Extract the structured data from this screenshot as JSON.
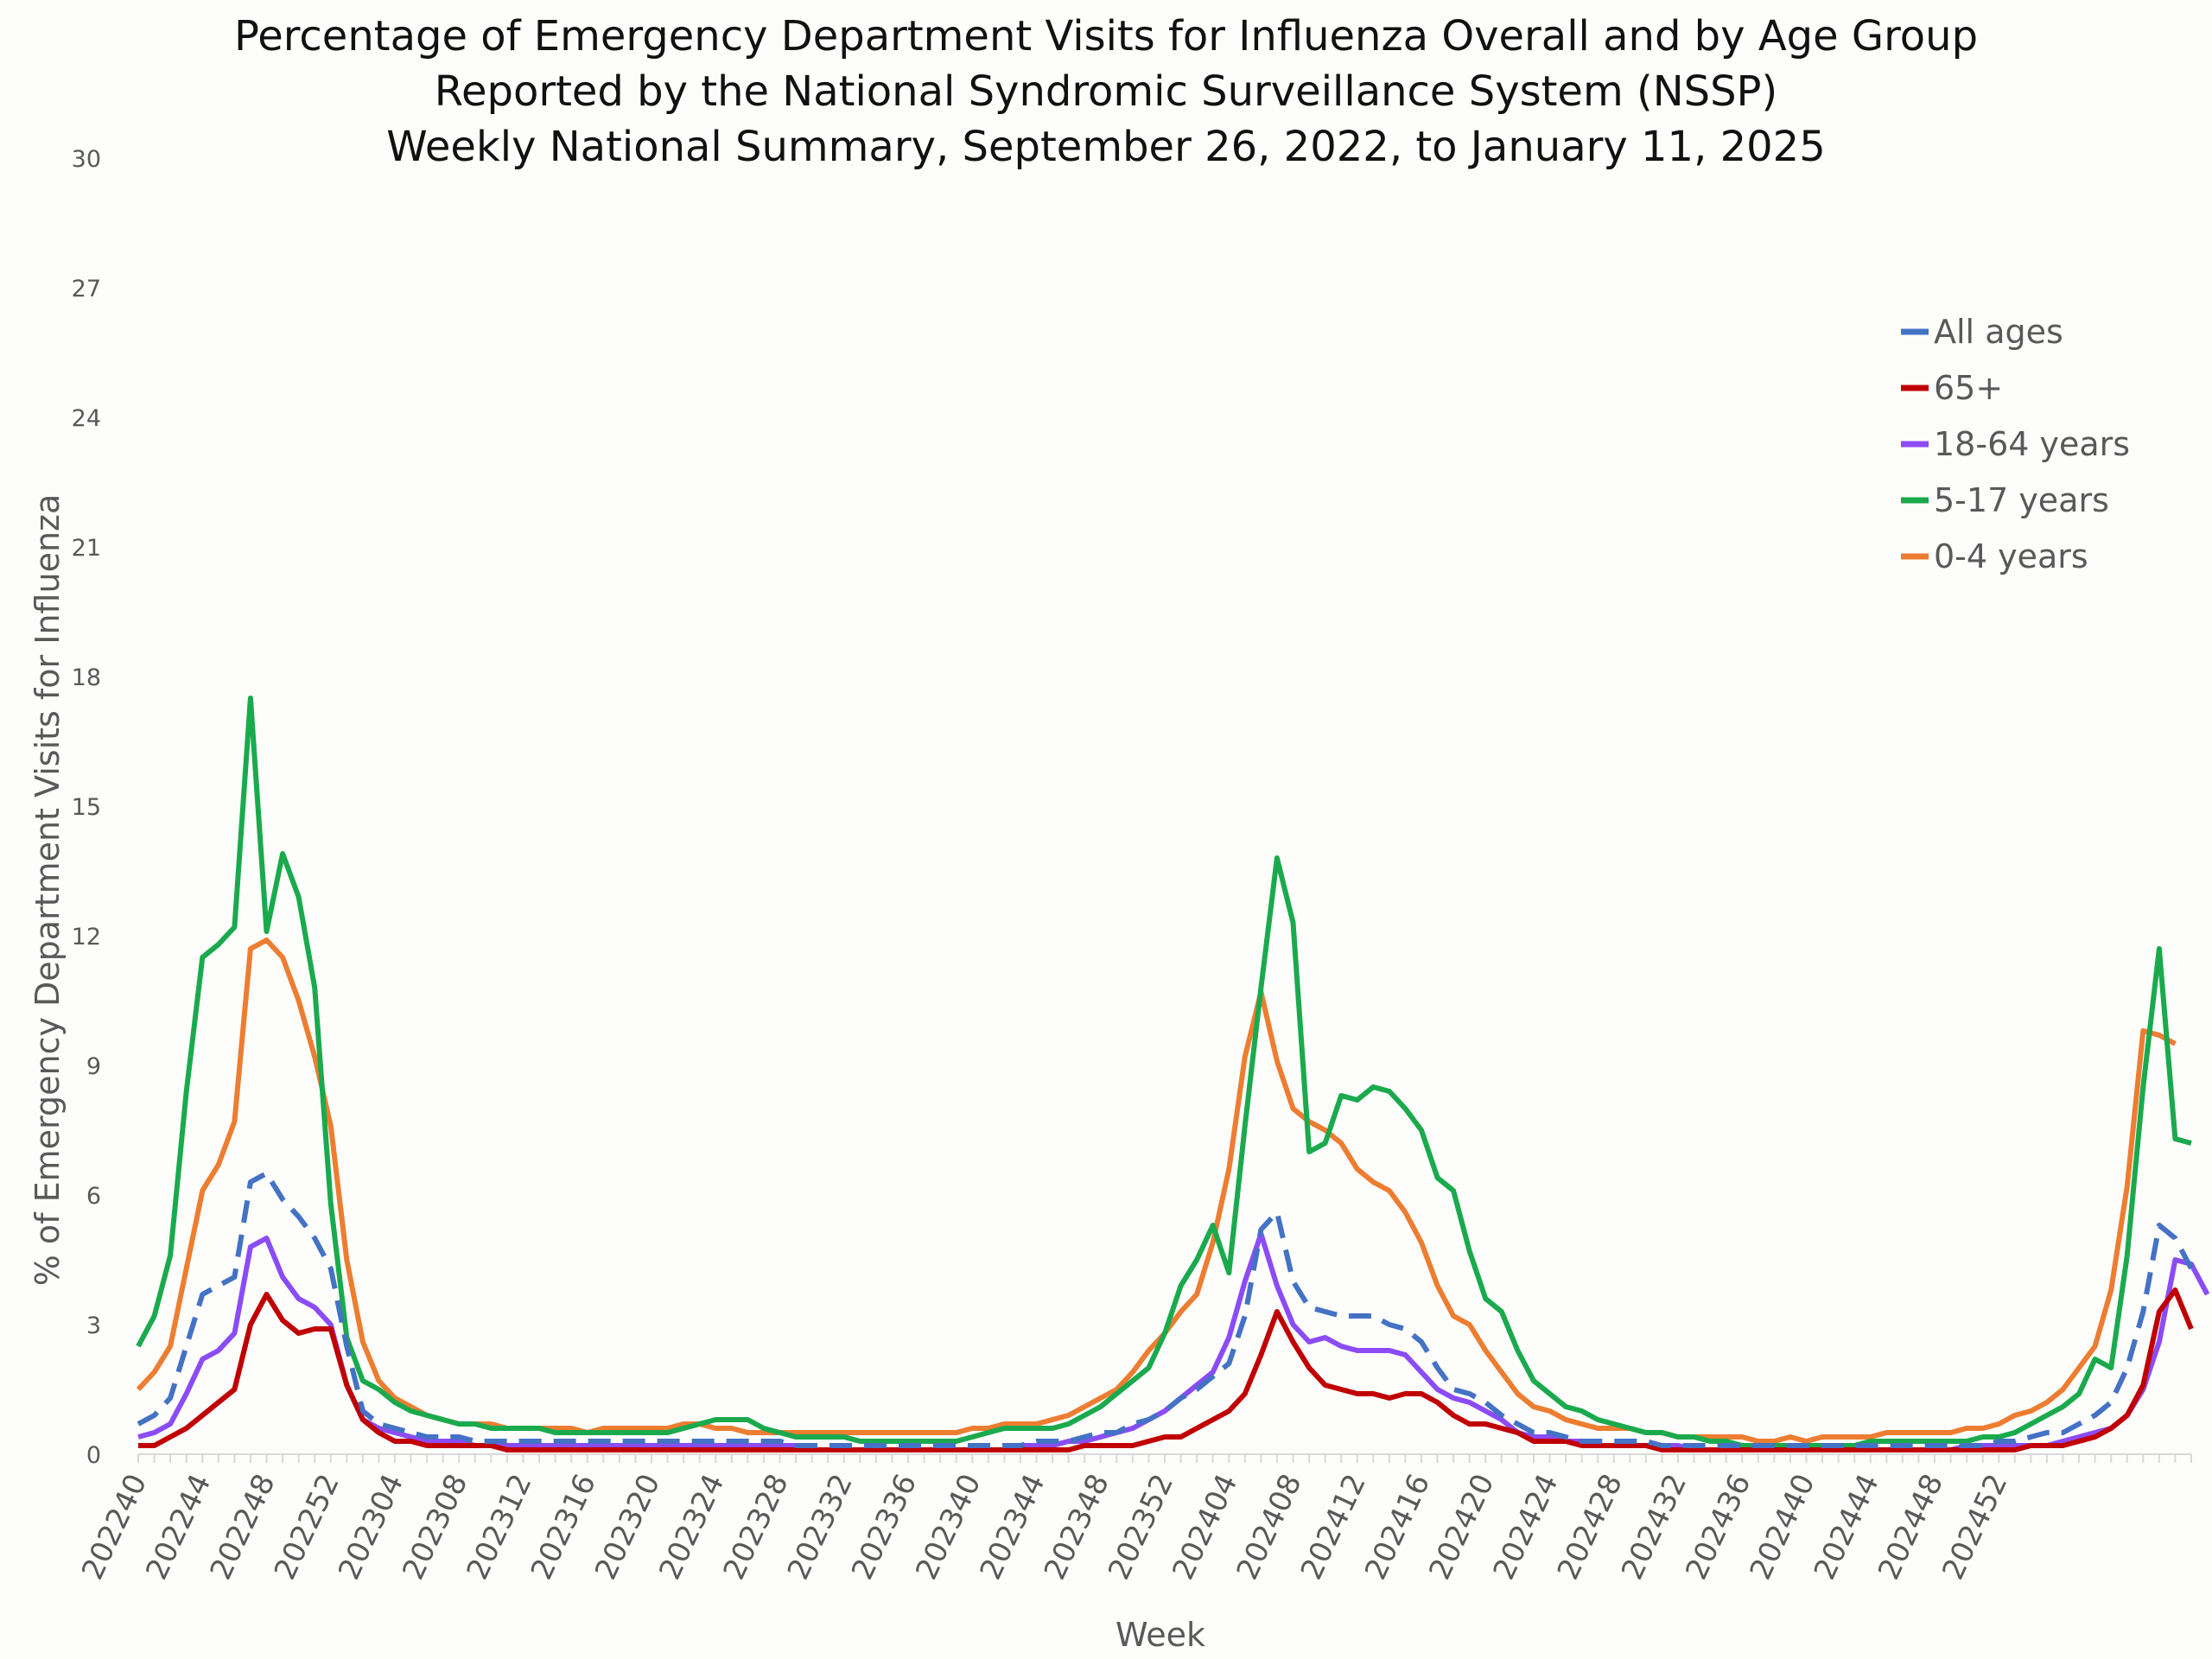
{
  "chart_data": {
    "type": "line",
    "title": [
      "Percentage of Emergency Department Visits for Influenza Overall and by Age Group",
      "Reported by the National Syndromic Surveillance System (NSSP)",
      "Weekly National Summary, September 26, 2022, to January 11, 2025"
    ],
    "xlabel": "Week",
    "ylabel": "% of Emergency Department Visits for Influenza",
    "ylim": [
      0,
      30
    ],
    "yticks": [
      0,
      3,
      6,
      9,
      12,
      15,
      18,
      21,
      24,
      27,
      30
    ],
    "xtick_labels": [
      "202240",
      "202244",
      "202248",
      "202252",
      "202304",
      "202308",
      "202312",
      "202316",
      "202320",
      "202324",
      "202328",
      "202332",
      "202336",
      "202340",
      "202344",
      "202348",
      "202352",
      "202404",
      "202408",
      "202412",
      "202416",
      "202420",
      "202424",
      "202428",
      "202432",
      "202436",
      "202440",
      "202444",
      "202448",
      "202452"
    ],
    "xtick_every": 4,
    "grid": false,
    "legend_position": "top-right",
    "series": [
      {
        "name": "All ages",
        "color": "#4472c4",
        "dashed": true,
        "values": [
          0.7,
          0.9,
          1.3,
          2.5,
          3.7,
          3.9,
          4.1,
          6.3,
          6.5,
          5.9,
          5.5,
          5.0,
          4.3,
          2.5,
          1.0,
          0.7,
          0.6,
          0.5,
          0.4,
          0.4,
          0.4,
          0.3,
          0.3,
          0.3,
          0.3,
          0.3,
          0.3,
          0.3,
          0.3,
          0.3,
          0.3,
          0.3,
          0.3,
          0.3,
          0.3,
          0.3,
          0.3,
          0.3,
          0.3,
          0.3,
          0.3,
          0.2,
          0.2,
          0.2,
          0.2,
          0.2,
          0.2,
          0.2,
          0.2,
          0.2,
          0.2,
          0.2,
          0.2,
          0.2,
          0.2,
          0.2,
          0.3,
          0.3,
          0.3,
          0.4,
          0.5,
          0.5,
          0.7,
          0.8,
          1.0,
          1.3,
          1.5,
          1.8,
          2.1,
          3.2,
          5.2,
          5.6,
          4.0,
          3.4,
          3.3,
          3.2,
          3.2,
          3.2,
          3.0,
          2.9,
          2.6,
          2.0,
          1.5,
          1.4,
          1.2,
          0.9,
          0.7,
          0.5,
          0.5,
          0.4,
          0.3,
          0.3,
          0.3,
          0.3,
          0.3,
          0.2,
          0.2,
          0.2,
          0.2,
          0.2,
          0.2,
          0.2,
          0.2,
          0.2,
          0.2,
          0.2,
          0.2,
          0.2,
          0.2,
          0.2,
          0.2,
          0.2,
          0.2,
          0.2,
          0.2,
          0.2,
          0.3,
          0.3,
          0.4,
          0.5,
          0.5,
          0.7,
          0.9,
          1.2,
          2.0,
          3.3,
          5.3,
          5.0,
          4.3
        ]
      },
      {
        "name": "65+",
        "color": "#c00000",
        "dashed": false,
        "values": [
          0.2,
          0.2,
          0.4,
          0.6,
          0.9,
          1.2,
          1.5,
          3.0,
          3.7,
          3.1,
          2.8,
          2.9,
          2.9,
          1.6,
          0.8,
          0.5,
          0.3,
          0.3,
          0.2,
          0.2,
          0.2,
          0.2,
          0.2,
          0.1,
          0.1,
          0.1,
          0.1,
          0.1,
          0.1,
          0.1,
          0.1,
          0.1,
          0.1,
          0.1,
          0.1,
          0.1,
          0.1,
          0.1,
          0.1,
          0.1,
          0.1,
          0.1,
          0.1,
          0.1,
          0.1,
          0.1,
          0.1,
          0.1,
          0.1,
          0.1,
          0.1,
          0.1,
          0.1,
          0.1,
          0.1,
          0.1,
          0.1,
          0.1,
          0.1,
          0.2,
          0.2,
          0.2,
          0.2,
          0.3,
          0.4,
          0.4,
          0.6,
          0.8,
          1.0,
          1.4,
          2.3,
          3.3,
          2.6,
          2.0,
          1.6,
          1.5,
          1.4,
          1.4,
          1.3,
          1.4,
          1.4,
          1.2,
          0.9,
          0.7,
          0.7,
          0.6,
          0.5,
          0.3,
          0.3,
          0.3,
          0.2,
          0.2,
          0.2,
          0.2,
          0.2,
          0.1,
          0.1,
          0.1,
          0.1,
          0.1,
          0.1,
          0.1,
          0.1,
          0.1,
          0.1,
          0.1,
          0.1,
          0.1,
          0.1,
          0.1,
          0.1,
          0.1,
          0.1,
          0.1,
          0.1,
          0.1,
          0.1,
          0.1,
          0.2,
          0.2,
          0.2,
          0.3,
          0.4,
          0.6,
          0.9,
          1.6,
          3.3,
          3.8,
          2.9
        ]
      },
      {
        "name": "18-64 years",
        "color": "#8b4cf6",
        "dashed": false,
        "values": [
          0.4,
          0.5,
          0.7,
          1.4,
          2.2,
          2.4,
          2.8,
          4.8,
          5.0,
          4.1,
          3.6,
          3.4,
          3.0,
          1.6,
          0.8,
          0.6,
          0.5,
          0.4,
          0.3,
          0.3,
          0.3,
          0.2,
          0.2,
          0.2,
          0.2,
          0.2,
          0.2,
          0.2,
          0.2,
          0.2,
          0.2,
          0.2,
          0.2,
          0.2,
          0.2,
          0.2,
          0.2,
          0.2,
          0.2,
          0.2,
          0.2,
          0.2,
          0.1,
          0.1,
          0.1,
          0.1,
          0.1,
          0.1,
          0.1,
          0.1,
          0.1,
          0.1,
          0.1,
          0.1,
          0.1,
          0.2,
          0.2,
          0.2,
          0.3,
          0.3,
          0.4,
          0.5,
          0.6,
          0.8,
          1.0,
          1.3,
          1.6,
          1.9,
          2.7,
          4.0,
          5.1,
          3.9,
          3.0,
          2.6,
          2.7,
          2.5,
          2.4,
          2.4,
          2.4,
          2.3,
          1.9,
          1.5,
          1.3,
          1.2,
          1.0,
          0.8,
          0.5,
          0.4,
          0.4,
          0.3,
          0.3,
          0.2,
          0.2,
          0.2,
          0.2,
          0.2,
          0.2,
          0.1,
          0.1,
          0.1,
          0.1,
          0.1,
          0.1,
          0.1,
          0.1,
          0.1,
          0.1,
          0.1,
          0.1,
          0.1,
          0.1,
          0.1,
          0.1,
          0.1,
          0.2,
          0.2,
          0.2,
          0.2,
          0.2,
          0.2,
          0.3,
          0.4,
          0.5,
          0.6,
          0.9,
          1.5,
          2.6,
          4.5,
          4.4,
          3.7
        ]
      },
      {
        "name": "5-17 years",
        "color": "#1aaa4d",
        "dashed": false,
        "values": [
          2.5,
          3.2,
          4.6,
          8.4,
          11.5,
          11.8,
          12.2,
          17.5,
          12.1,
          13.9,
          12.9,
          10.8,
          5.8,
          2.7,
          1.7,
          1.5,
          1.2,
          1.0,
          0.9,
          0.8,
          0.7,
          0.7,
          0.6,
          0.6,
          0.6,
          0.6,
          0.5,
          0.5,
          0.5,
          0.5,
          0.5,
          0.5,
          0.5,
          0.5,
          0.6,
          0.7,
          0.8,
          0.8,
          0.8,
          0.6,
          0.5,
          0.4,
          0.4,
          0.4,
          0.4,
          0.3,
          0.3,
          0.3,
          0.3,
          0.3,
          0.3,
          0.3,
          0.4,
          0.5,
          0.6,
          0.6,
          0.6,
          0.6,
          0.7,
          0.9,
          1.1,
          1.4,
          1.7,
          2.0,
          2.8,
          3.9,
          4.5,
          5.3,
          4.2,
          7.6,
          10.8,
          13.8,
          12.3,
          7.0,
          7.2,
          8.3,
          8.2,
          8.5,
          8.4,
          8.0,
          7.5,
          6.4,
          6.1,
          4.7,
          3.6,
          3.3,
          2.4,
          1.7,
          1.4,
          1.1,
          1.0,
          0.8,
          0.7,
          0.6,
          0.5,
          0.5,
          0.4,
          0.4,
          0.3,
          0.3,
          0.2,
          0.2,
          0.2,
          0.2,
          0.2,
          0.2,
          0.2,
          0.2,
          0.3,
          0.3,
          0.3,
          0.3,
          0.3,
          0.3,
          0.3,
          0.4,
          0.4,
          0.5,
          0.7,
          0.9,
          1.1,
          1.4,
          2.2,
          2.0,
          4.6,
          8.5,
          11.7,
          7.3,
          7.2
        ]
      },
      {
        "name": "0-4 years",
        "color": "#ed7d31",
        "dashed": false,
        "values": [
          1.5,
          1.9,
          2.5,
          4.3,
          6.1,
          6.7,
          7.7,
          11.7,
          11.9,
          11.5,
          10.5,
          9.2,
          7.6,
          4.5,
          2.6,
          1.7,
          1.3,
          1.1,
          0.9,
          0.8,
          0.7,
          0.7,
          0.7,
          0.6,
          0.6,
          0.6,
          0.6,
          0.6,
          0.5,
          0.6,
          0.6,
          0.6,
          0.6,
          0.6,
          0.7,
          0.7,
          0.6,
          0.6,
          0.5,
          0.5,
          0.5,
          0.5,
          0.5,
          0.5,
          0.5,
          0.5,
          0.5,
          0.5,
          0.5,
          0.5,
          0.5,
          0.5,
          0.6,
          0.6,
          0.7,
          0.7,
          0.7,
          0.8,
          0.9,
          1.1,
          1.3,
          1.5,
          1.9,
          2.4,
          2.8,
          3.3,
          3.7,
          4.9,
          6.6,
          9.2,
          10.7,
          9.1,
          8.0,
          7.7,
          7.5,
          7.2,
          6.6,
          6.3,
          6.1,
          5.6,
          4.9,
          3.9,
          3.2,
          3.0,
          2.4,
          1.9,
          1.4,
          1.1,
          1.0,
          0.8,
          0.7,
          0.6,
          0.6,
          0.6,
          0.5,
          0.5,
          0.4,
          0.4,
          0.4,
          0.4,
          0.4,
          0.3,
          0.3,
          0.4,
          0.3,
          0.4,
          0.4,
          0.4,
          0.4,
          0.5,
          0.5,
          0.5,
          0.5,
          0.5,
          0.6,
          0.6,
          0.7,
          0.9,
          1.0,
          1.2,
          1.5,
          2.0,
          2.5,
          3.8,
          6.2,
          9.8,
          9.7,
          9.5
        ]
      }
    ]
  }
}
